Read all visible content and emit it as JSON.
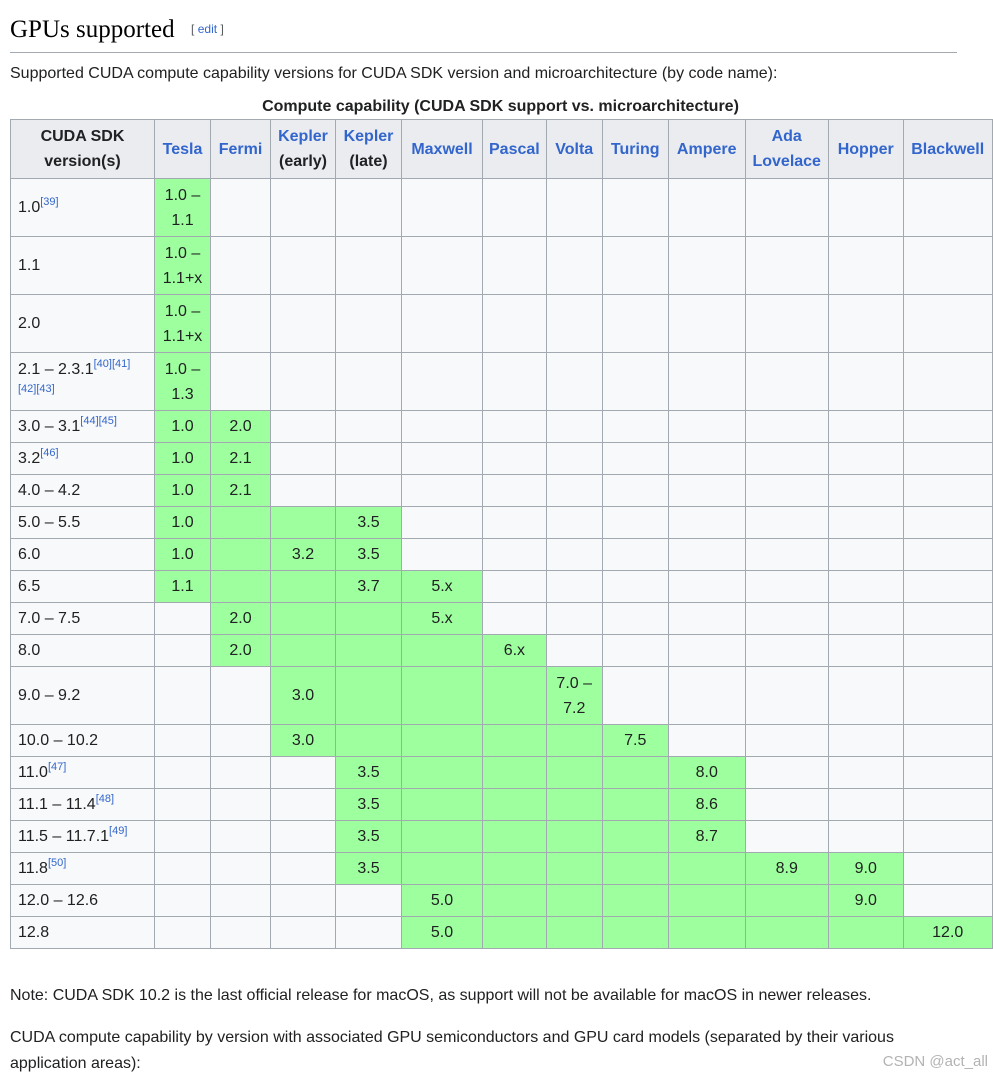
{
  "section": {
    "title": "GPUs supported",
    "edit_open": "[",
    "edit_label": "edit",
    "edit_close": "]"
  },
  "intro": "Supported CUDA compute capability versions for CUDA SDK version and microarchitecture (by code name):",
  "table": {
    "caption": "Compute capability (CUDA SDK support vs. microarchitecture)",
    "header_first_line1": "CUDA SDK",
    "header_first_line2": "version(s)",
    "columns": [
      {
        "line1": "Tesla",
        "line2": ""
      },
      {
        "line1": "Fermi",
        "line2": ""
      },
      {
        "line1": "Kepler",
        "line2": "(early)"
      },
      {
        "line1": "Kepler",
        "line2": "(late)"
      },
      {
        "line1": "Maxwell",
        "line2": ""
      },
      {
        "line1": "Pascal",
        "line2": ""
      },
      {
        "line1": "Volta",
        "line2": ""
      },
      {
        "line1": "Turing",
        "line2": ""
      },
      {
        "line1": "Ampere",
        "line2": ""
      },
      {
        "line1": "Ada",
        "line2": "Lovelace"
      },
      {
        "line1": "Hopper",
        "line2": ""
      },
      {
        "line1": "Blackwell",
        "line2": ""
      }
    ],
    "green_color": "#9eff9e",
    "rows": [
      {
        "version": "1.0",
        "refs": "[39]",
        "cells": [
          "1.0 – 1.1",
          "",
          "",
          "",
          "",
          "",
          "",
          "",
          "",
          "",
          "",
          ""
        ],
        "green": [
          1,
          0,
          0,
          0,
          0,
          0,
          0,
          0,
          0,
          0,
          0,
          0
        ]
      },
      {
        "version": "1.1",
        "refs": "",
        "cells": [
          "1.0 – 1.1+x",
          "",
          "",
          "",
          "",
          "",
          "",
          "",
          "",
          "",
          "",
          ""
        ],
        "green": [
          1,
          0,
          0,
          0,
          0,
          0,
          0,
          0,
          0,
          0,
          0,
          0
        ]
      },
      {
        "version": "2.0",
        "refs": "",
        "cells": [
          "1.0 – 1.1+x",
          "",
          "",
          "",
          "",
          "",
          "",
          "",
          "",
          "",
          "",
          ""
        ],
        "green": [
          1,
          0,
          0,
          0,
          0,
          0,
          0,
          0,
          0,
          0,
          0,
          0
        ]
      },
      {
        "version": "2.1 – 2.3.1",
        "refs": "[40][41][42][43]",
        "cells": [
          "1.0 – 1.3",
          "",
          "",
          "",
          "",
          "",
          "",
          "",
          "",
          "",
          "",
          ""
        ],
        "green": [
          1,
          0,
          0,
          0,
          0,
          0,
          0,
          0,
          0,
          0,
          0,
          0
        ]
      },
      {
        "version": "3.0 – 3.1",
        "refs": "[44][45]",
        "cells": [
          "1.0",
          "2.0",
          "",
          "",
          "",
          "",
          "",
          "",
          "",
          "",
          "",
          ""
        ],
        "green": [
          1,
          1,
          0,
          0,
          0,
          0,
          0,
          0,
          0,
          0,
          0,
          0
        ]
      },
      {
        "version": "3.2",
        "refs": "[46]",
        "cells": [
          "1.0",
          "2.1",
          "",
          "",
          "",
          "",
          "",
          "",
          "",
          "",
          "",
          ""
        ],
        "green": [
          1,
          1,
          0,
          0,
          0,
          0,
          0,
          0,
          0,
          0,
          0,
          0
        ]
      },
      {
        "version": "4.0 – 4.2",
        "refs": "",
        "cells": [
          "1.0",
          "2.1",
          "",
          "",
          "",
          "",
          "",
          "",
          "",
          "",
          "",
          ""
        ],
        "green": [
          1,
          1,
          0,
          0,
          0,
          0,
          0,
          0,
          0,
          0,
          0,
          0
        ]
      },
      {
        "version": "5.0 – 5.5",
        "refs": "",
        "cells": [
          "1.0",
          "",
          "",
          "3.5",
          "",
          "",
          "",
          "",
          "",
          "",
          "",
          ""
        ],
        "green": [
          1,
          1,
          1,
          1,
          0,
          0,
          0,
          0,
          0,
          0,
          0,
          0
        ]
      },
      {
        "version": "6.0",
        "refs": "",
        "cells": [
          "1.0",
          "",
          "3.2",
          "3.5",
          "",
          "",
          "",
          "",
          "",
          "",
          "",
          ""
        ],
        "green": [
          1,
          1,
          1,
          1,
          0,
          0,
          0,
          0,
          0,
          0,
          0,
          0
        ]
      },
      {
        "version": "6.5",
        "refs": "",
        "cells": [
          "1.1",
          "",
          "",
          "3.7",
          "5.x",
          "",
          "",
          "",
          "",
          "",
          "",
          ""
        ],
        "green": [
          1,
          1,
          1,
          1,
          1,
          0,
          0,
          0,
          0,
          0,
          0,
          0
        ]
      },
      {
        "version": "7.0 – 7.5",
        "refs": "",
        "cells": [
          "",
          "2.0",
          "",
          "",
          "5.x",
          "",
          "",
          "",
          "",
          "",
          "",
          ""
        ],
        "green": [
          0,
          1,
          1,
          1,
          1,
          0,
          0,
          0,
          0,
          0,
          0,
          0
        ]
      },
      {
        "version": "8.0",
        "refs": "",
        "cells": [
          "",
          "2.0",
          "",
          "",
          "",
          "6.x",
          "",
          "",
          "",
          "",
          "",
          ""
        ],
        "green": [
          0,
          1,
          1,
          1,
          1,
          1,
          0,
          0,
          0,
          0,
          0,
          0
        ]
      },
      {
        "version": "9.0 – 9.2",
        "refs": "",
        "cells": [
          "",
          "",
          "3.0",
          "",
          "",
          "",
          "7.0 – 7.2",
          "",
          "",
          "",
          "",
          ""
        ],
        "green": [
          0,
          0,
          1,
          1,
          1,
          1,
          1,
          0,
          0,
          0,
          0,
          0
        ]
      },
      {
        "version": "10.0 – 10.2",
        "refs": "",
        "cells": [
          "",
          "",
          "3.0",
          "",
          "",
          "",
          "",
          "7.5",
          "",
          "",
          "",
          ""
        ],
        "green": [
          0,
          0,
          1,
          1,
          1,
          1,
          1,
          1,
          0,
          0,
          0,
          0
        ]
      },
      {
        "version": "11.0",
        "refs": "[47]",
        "cells": [
          "",
          "",
          "",
          "3.5",
          "",
          "",
          "",
          "",
          "8.0",
          "",
          "",
          ""
        ],
        "green": [
          0,
          0,
          0,
          1,
          1,
          1,
          1,
          1,
          1,
          0,
          0,
          0
        ]
      },
      {
        "version": "11.1 – 11.4",
        "refs": "[48]",
        "cells": [
          "",
          "",
          "",
          "3.5",
          "",
          "",
          "",
          "",
          "8.6",
          "",
          "",
          ""
        ],
        "green": [
          0,
          0,
          0,
          1,
          1,
          1,
          1,
          1,
          1,
          0,
          0,
          0
        ]
      },
      {
        "version": "11.5 – 11.7.1",
        "refs": "[49]",
        "cells": [
          "",
          "",
          "",
          "3.5",
          "",
          "",
          "",
          "",
          "8.7",
          "",
          "",
          ""
        ],
        "green": [
          0,
          0,
          0,
          1,
          1,
          1,
          1,
          1,
          1,
          0,
          0,
          0
        ]
      },
      {
        "version": "11.8",
        "refs": "[50]",
        "cells": [
          "",
          "",
          "",
          "3.5",
          "",
          "",
          "",
          "",
          "",
          "8.9",
          "9.0",
          ""
        ],
        "green": [
          0,
          0,
          0,
          1,
          1,
          1,
          1,
          1,
          1,
          1,
          1,
          0
        ]
      },
      {
        "version": "12.0 – 12.6",
        "refs": "",
        "cells": [
          "",
          "",
          "",
          "",
          "5.0",
          "",
          "",
          "",
          "",
          "",
          "9.0",
          ""
        ],
        "green": [
          0,
          0,
          0,
          0,
          1,
          1,
          1,
          1,
          1,
          1,
          1,
          0
        ]
      },
      {
        "version": "12.8",
        "refs": "",
        "cells": [
          "",
          "",
          "",
          "",
          "5.0",
          "",
          "",
          "",
          "",
          "",
          "",
          "12.0"
        ],
        "green": [
          0,
          0,
          0,
          0,
          1,
          1,
          1,
          1,
          1,
          1,
          1,
          1
        ]
      }
    ]
  },
  "note": "Note: CUDA SDK 10.2 is the last official release for macOS, as support will not be available for macOS in newer releases.",
  "paragraph2": "CUDA compute capability by version with associated GPU semiconductors and GPU card models (separated by their various application areas):",
  "watermark": "CSDN @act_all"
}
